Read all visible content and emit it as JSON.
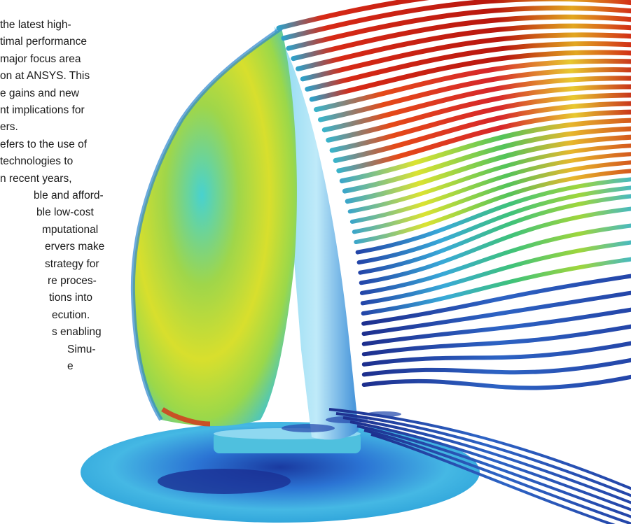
{
  "article": {
    "lines": [
      "the latest high-",
      "timal performance",
      "major focus area",
      "on at ANSYS. This",
      "e gains and new",
      "nt implications for",
      "ers.",
      "efers to the use of",
      " technologies to",
      "n recent years,",
      "ble and afford-",
      "ble low-cost",
      "mputational",
      "ervers make",
      "strategy for",
      "re proces-",
      "tions into",
      "ecution.",
      "s enabling",
      "Simu-",
      "e"
    ]
  },
  "colors": {
    "page_background": "#ffffff",
    "text": "#1a1a1a",
    "sail_base": "#3cc8d8",
    "sail_warm": "#d8e030",
    "streamline_hot": "#c41a10",
    "streamline_mid": "#e8d020",
    "streamline_cool": "#2a5ab8",
    "deck": "#2f86d8"
  },
  "figure": {
    "icon": "sailboat-cfd-streamlines-visualization"
  }
}
